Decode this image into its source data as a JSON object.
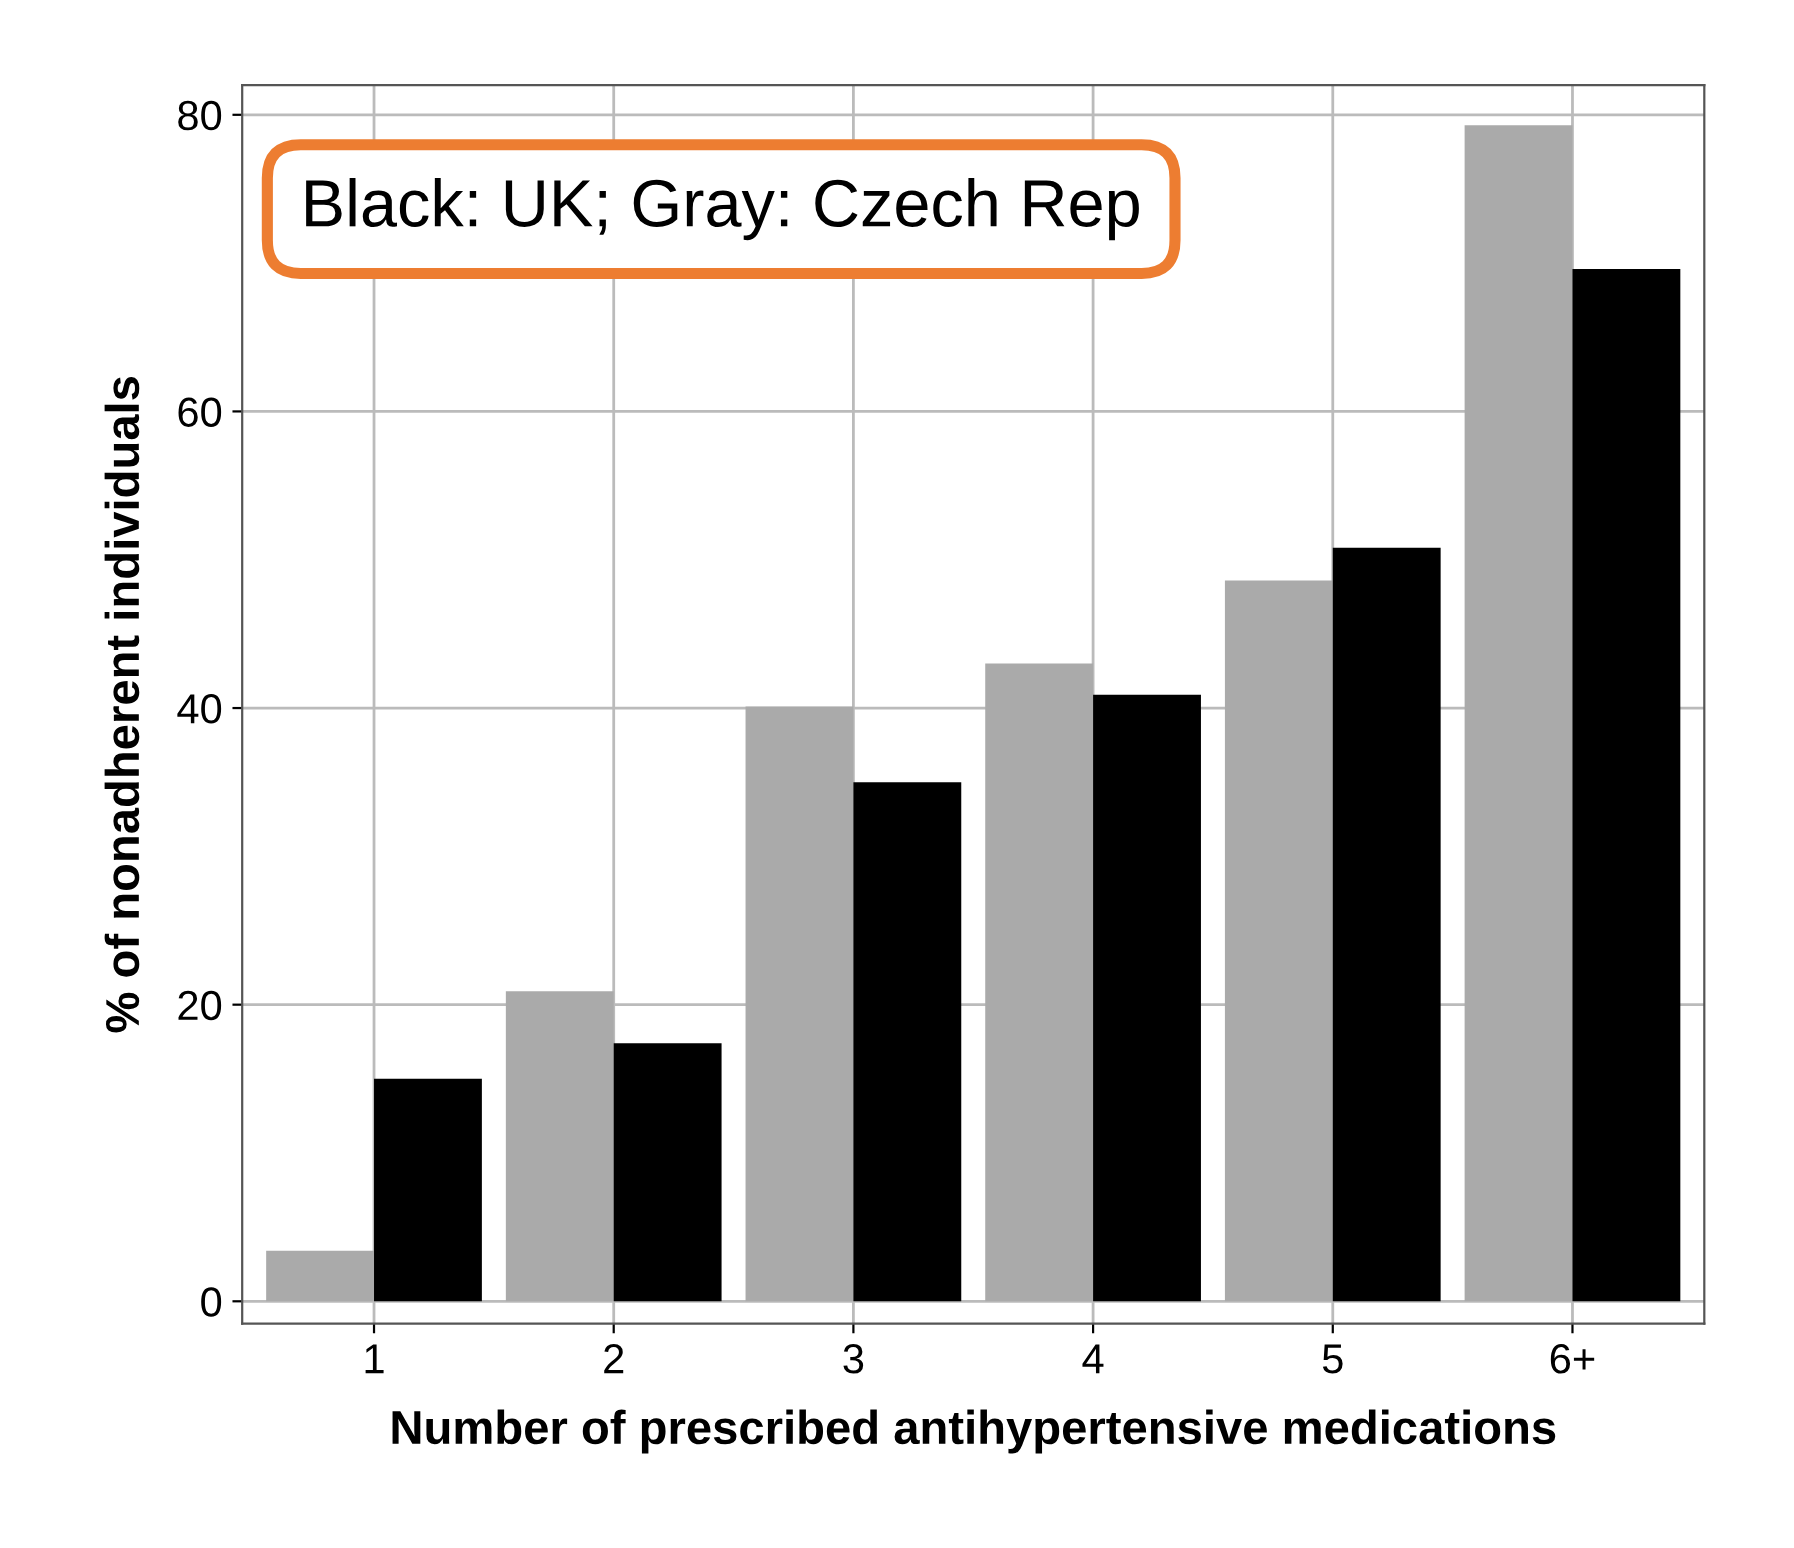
{
  "chart_data": {
    "type": "bar",
    "xlabel": "Number of prescribed antihypertensive medications",
    "ylabel": "% of nonadherent individuals",
    "categories": [
      "1",
      "2",
      "3",
      "4",
      "5",
      "6+"
    ],
    "series": [
      {
        "color": "#aaaaaa",
        "values": [
          3.4,
          20.9,
          40.1,
          43.0,
          48.6,
          79.3
        ]
      },
      {
        "color": "#000000",
        "values": [
          15.0,
          17.4,
          35.0,
          40.9,
          50.8,
          69.6
        ]
      }
    ],
    "ylim": [
      -1.5,
      82
    ],
    "yticks": [
      0,
      20,
      40,
      60,
      80
    ],
    "grid": true,
    "legend": false,
    "annotations": [
      "Black: UK; Gray: Czech Rep"
    ]
  }
}
